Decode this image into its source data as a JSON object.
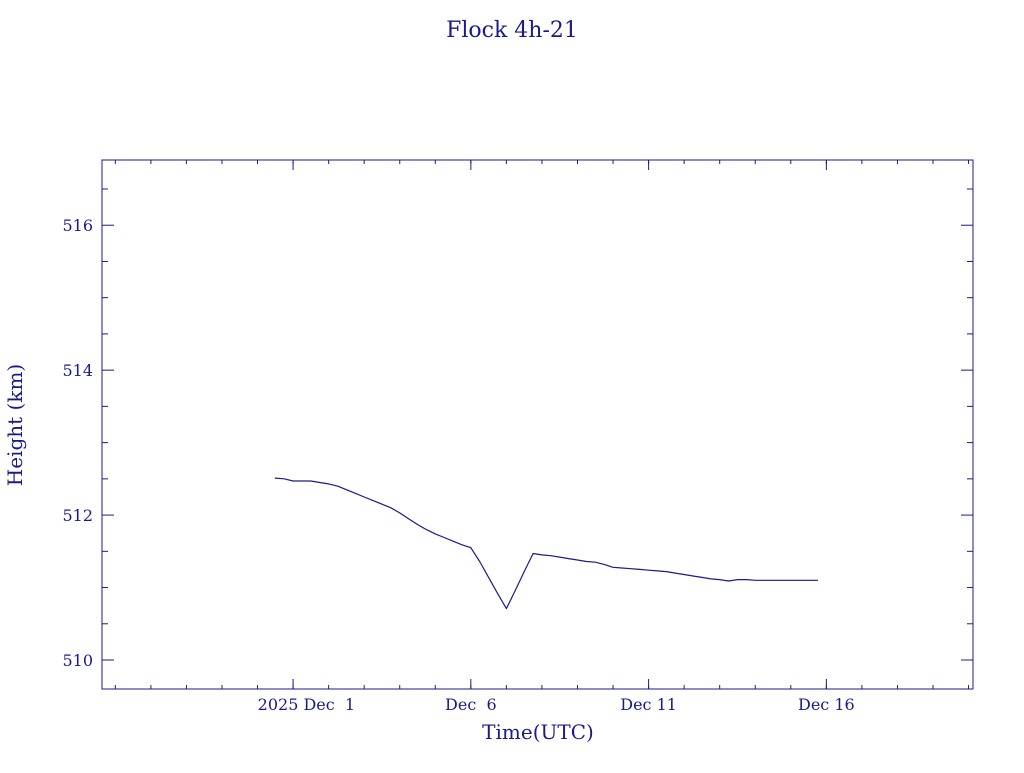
{
  "colors": {
    "ink": "#1a1a8c",
    "background": "#ffffff"
  },
  "chart_data": {
    "type": "line",
    "title": "Flock 4h-21",
    "xlabel": "Time(UTC)",
    "ylabel": "Height (km)",
    "x_tick_labels": [
      "2025 Dec  1",
      "Dec  6",
      "Dec 11",
      "Dec 16"
    ],
    "y_tick_labels": [
      "510",
      "512",
      "514",
      "516"
    ],
    "ylim": [
      509.6,
      516.9
    ],
    "grid": false,
    "series": [
      {
        "x": [
          "2025-11-30 12:00",
          "2025-11-30 18:00",
          "2025-12-01 00:00",
          "2025-12-01 06:00",
          "2025-12-01 12:00",
          "2025-12-01 18:00",
          "2025-12-02 00:00",
          "2025-12-02 06:00",
          "2025-12-02 12:00",
          "2025-12-02 18:00",
          "2025-12-03 00:00",
          "2025-12-03 06:00",
          "2025-12-03 12:00",
          "2025-12-03 18:00",
          "2025-12-04 00:00",
          "2025-12-04 06:00",
          "2025-12-04 12:00",
          "2025-12-04 18:00",
          "2025-12-05 00:00",
          "2025-12-05 06:00",
          "2025-12-05 12:00",
          "2025-12-05 18:00",
          "2025-12-06 00:00",
          "2025-12-06 06:00",
          "2025-12-06 12:00",
          "2025-12-06 18:00",
          "2025-12-07 00:00",
          "2025-12-07 06:00",
          "2025-12-07 12:00",
          "2025-12-07 18:00",
          "2025-12-08 00:00",
          "2025-12-08 06:00",
          "2025-12-08 12:00",
          "2025-12-08 18:00",
          "2025-12-09 00:00",
          "2025-12-09 06:00",
          "2025-12-09 12:00",
          "2025-12-09 18:00",
          "2025-12-10 00:00",
          "2025-12-10 06:00",
          "2025-12-10 12:00",
          "2025-12-10 18:00",
          "2025-12-11 00:00",
          "2025-12-11 06:00",
          "2025-12-11 12:00",
          "2025-12-11 18:00",
          "2025-12-12 00:00",
          "2025-12-12 06:00",
          "2025-12-12 12:00",
          "2025-12-12 18:00",
          "2025-12-13 00:00",
          "2025-12-13 06:00",
          "2025-12-13 12:00",
          "2025-12-13 18:00",
          "2025-12-14 00:00",
          "2025-12-14 06:00",
          "2025-12-14 12:00",
          "2025-12-14 18:00",
          "2025-12-15 00:00",
          "2025-12-15 06:00",
          "2025-12-15 12:00",
          "2025-12-15 18:00"
        ],
        "y": [
          512.51,
          512.5,
          512.47,
          512.47,
          512.47,
          512.45,
          512.43,
          512.4,
          512.35,
          512.3,
          512.25,
          512.2,
          512.15,
          512.1,
          512.03,
          511.95,
          511.87,
          511.8,
          511.74,
          511.69,
          511.64,
          511.59,
          511.55,
          511.36,
          511.14,
          510.92,
          510.71,
          510.96,
          511.22,
          511.47,
          511.45,
          511.44,
          511.42,
          511.4,
          511.38,
          511.36,
          511.35,
          511.32,
          511.28,
          511.27,
          511.26,
          511.25,
          511.24,
          511.23,
          511.22,
          511.2,
          511.18,
          511.16,
          511.14,
          511.12,
          511.11,
          511.09,
          511.11,
          511.11,
          511.1,
          511.1,
          511.1,
          511.1,
          511.1,
          511.1,
          511.1,
          511.1
        ]
      }
    ]
  }
}
